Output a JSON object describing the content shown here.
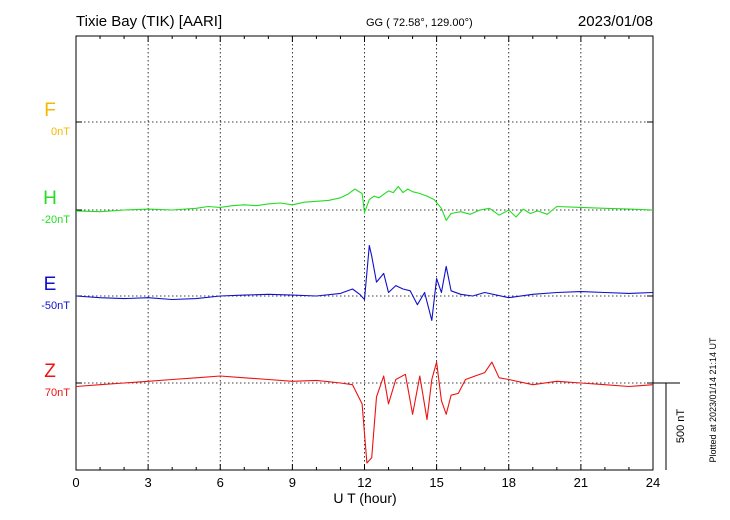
{
  "header": {
    "station": "Tixie Bay (TIK)  [AARI]",
    "coords": "GG ( 72.58°, 129.00°)",
    "date": "2023/01/08"
  },
  "footer": {
    "plotted": "Plotted at 2023/01/14 21:14 UT"
  },
  "colors": {
    "F": "#f5b800",
    "H": "#22dd22",
    "E": "#1010cc",
    "Z": "#ee1111"
  },
  "chart_data": {
    "type": "line",
    "xlabel": "U T (hour)",
    "xlim": [
      0,
      24
    ],
    "xticks": [
      "0",
      "3",
      "6",
      "9",
      "12",
      "15",
      "18",
      "21",
      "24"
    ],
    "scale_label": "500 nT",
    "scale_nT": 500,
    "series": [
      {
        "name": "F",
        "baseline_label": "0nT",
        "x": [],
        "values": []
      },
      {
        "name": "H",
        "baseline_label": "-20nT",
        "x": [
          0,
          1,
          2,
          3,
          4,
          5,
          5.5,
          6,
          6.5,
          7,
          7.5,
          8,
          8.5,
          9,
          9.5,
          10,
          10.5,
          11,
          11.3,
          11.6,
          11.9,
          12.0,
          12.2,
          12.4,
          12.6,
          12.8,
          13.0,
          13.2,
          13.4,
          13.6,
          13.8,
          14.0,
          14.3,
          14.6,
          14.9,
          15.2,
          15.4,
          15.6,
          16.0,
          16.4,
          16.8,
          17.2,
          17.6,
          18.0,
          18.3,
          18.6,
          18.9,
          19.2,
          19.6,
          20,
          21,
          22,
          23,
          24
        ],
        "values": [
          -5,
          -10,
          0,
          5,
          0,
          10,
          20,
          15,
          25,
          30,
          25,
          35,
          40,
          30,
          45,
          50,
          55,
          70,
          90,
          120,
          95,
          -15,
          60,
          80,
          70,
          90,
          110,
          100,
          135,
          100,
          120,
          105,
          95,
          80,
          60,
          10,
          -60,
          -20,
          -10,
          -25,
          0,
          10,
          -30,
          0,
          -40,
          5,
          -20,
          -5,
          -25,
          20,
          15,
          10,
          5,
          0
        ]
      },
      {
        "name": "E",
        "baseline_label": "-50nT",
        "x": [
          0,
          1,
          2,
          3,
          4,
          5,
          6,
          7,
          8,
          9,
          10,
          11,
          11.5,
          11.8,
          12.0,
          12.2,
          12.3,
          12.5,
          12.8,
          13.0,
          13.3,
          13.6,
          13.9,
          14.2,
          14.5,
          14.8,
          15.0,
          15.2,
          15.4,
          15.6,
          16.0,
          16.5,
          17,
          18,
          19,
          20,
          21,
          22,
          23,
          24
        ],
        "values": [
          0,
          -10,
          -15,
          -10,
          -20,
          -15,
          0,
          5,
          10,
          5,
          0,
          15,
          40,
          10,
          -20,
          290,
          230,
          80,
          130,
          20,
          60,
          40,
          30,
          -50,
          20,
          -140,
          100,
          20,
          170,
          30,
          10,
          0,
          20,
          -10,
          10,
          20,
          25,
          20,
          15,
          20
        ]
      },
      {
        "name": "Z",
        "baseline_label": "70nT",
        "x": [
          0,
          1,
          2,
          3,
          4,
          5,
          6,
          7,
          8,
          9,
          10,
          11,
          11.5,
          11.9,
          12.1,
          12.3,
          12.5,
          12.8,
          13.0,
          13.3,
          13.7,
          14.0,
          14.3,
          14.6,
          14.8,
          15.0,
          15.2,
          15.4,
          15.6,
          15.9,
          16.2,
          16.6,
          17.0,
          17.3,
          17.6,
          18,
          19,
          20,
          21,
          22,
          23,
          24
        ],
        "values": [
          -20,
          -10,
          0,
          10,
          20,
          30,
          40,
          30,
          20,
          10,
          15,
          0,
          -10,
          -120,
          -460,
          -430,
          -80,
          40,
          -120,
          20,
          50,
          -180,
          40,
          -210,
          20,
          120,
          -100,
          -180,
          -70,
          -60,
          20,
          40,
          60,
          120,
          30,
          20,
          -10,
          10,
          0,
          -10,
          -20,
          -10
        ]
      }
    ]
  }
}
